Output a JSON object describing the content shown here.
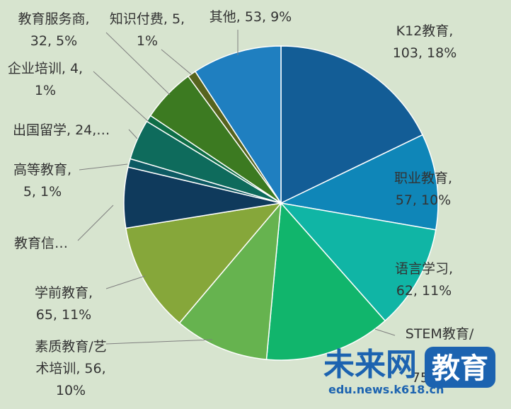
{
  "chart_data": {
    "type": "pie",
    "title": "",
    "slices": [
      {
        "key": "k12",
        "label_lines": [
          "K12教育,",
          "103, 18%"
        ],
        "value": 103,
        "percent": 18,
        "color": "#135d96"
      },
      {
        "key": "vocational",
        "label_lines": [
          "职业教育,",
          "57, 10%"
        ],
        "value": 57,
        "percent": 10,
        "color": "#0f86b8"
      },
      {
        "key": "language",
        "label_lines": [
          "语言学习,",
          "62, 11%"
        ],
        "value": 62,
        "percent": 11,
        "color": "#10b5a5"
      },
      {
        "key": "stem",
        "label_lines": [
          "STEM教育/",
          "…",
          "75, 13%"
        ],
        "value": 75,
        "percent": 13,
        "color": "#11b56c"
      },
      {
        "key": "arts",
        "label_lines": [
          "素质教育/艺",
          "术培训, 56,",
          "10%"
        ],
        "value": 56,
        "percent": 10,
        "color": "#66b34f"
      },
      {
        "key": "preschool",
        "label_lines": [
          "学前教育,",
          "65, 11%"
        ],
        "value": 65,
        "percent": 11,
        "color": "#86a73a"
      },
      {
        "key": "edu_it",
        "label_lines": [
          "教育信…"
        ],
        "value": 36,
        "percent": 6,
        "color": "#0f3a5c"
      },
      {
        "key": "higher",
        "label_lines": [
          "高等教育,",
          "5, 1%"
        ],
        "value": 5,
        "percent": 1,
        "color": "#0d5a63"
      },
      {
        "key": "study_abroad",
        "label_lines": [
          "出国留学, 24,…"
        ],
        "value": 24,
        "percent": 4,
        "color": "#0e6b5c"
      },
      {
        "key": "corporate",
        "label_lines": [
          "企业培训, 4,",
          "1%"
        ],
        "value": 4,
        "percent": 1,
        "color": "#0e6e47"
      },
      {
        "key": "service",
        "label_lines": [
          "教育服务商,",
          "32, 5%"
        ],
        "value": 32,
        "percent": 5,
        "color": "#3c7a21"
      },
      {
        "key": "knowledge",
        "label_lines": [
          "知识付费, 5,",
          "1%"
        ],
        "value": 5,
        "percent": 1,
        "color": "#57641e"
      },
      {
        "key": "other",
        "label_lines": [
          "其他, 53, 9%"
        ],
        "value": 53,
        "percent": 9,
        "color": "#1f7fc0"
      }
    ]
  },
  "watermark": {
    "brand": "未来网",
    "badge": "教育",
    "url": "edu.news.k618.cn",
    "colors": {
      "brand": "#1c63b0",
      "badge_bg": "#1c63b0",
      "badge_text": "#ffffff"
    }
  }
}
